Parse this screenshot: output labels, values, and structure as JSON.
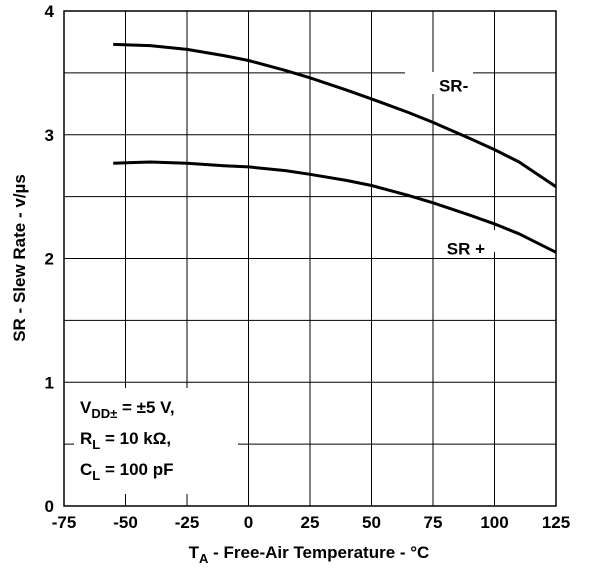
{
  "chart_data": {
    "type": "line",
    "xlabel_main": "T",
    "xlabel_sub": "A",
    "xlabel_rest": " - Free-Air Temperature - °C",
    "ylabel": "SR - Slew Rate - v/µs",
    "xlim": [
      -75,
      125
    ],
    "ylim": [
      0,
      4
    ],
    "x_ticks": [
      "-75",
      "-50",
      "-25",
      "0",
      "25",
      "50",
      "75",
      "100",
      "125"
    ],
    "y_ticks": [
      "0",
      "1",
      "2",
      "3",
      "4"
    ],
    "grid": true,
    "series": [
      {
        "name": "SR-",
        "x": [
          -55,
          -40,
          -25,
          -10,
          0,
          15,
          25,
          40,
          50,
          65,
          75,
          90,
          100,
          110,
          125
        ],
        "y": [
          3.73,
          3.72,
          3.69,
          3.64,
          3.6,
          3.52,
          3.46,
          3.36,
          3.29,
          3.18,
          3.1,
          2.97,
          2.88,
          2.78,
          2.58
        ]
      },
      {
        "name": "SR +",
        "x": [
          -55,
          -40,
          -25,
          -10,
          0,
          15,
          25,
          40,
          50,
          65,
          75,
          90,
          100,
          110,
          125
        ],
        "y": [
          2.77,
          2.78,
          2.77,
          2.75,
          2.74,
          2.71,
          2.68,
          2.63,
          2.59,
          2.51,
          2.45,
          2.35,
          2.28,
          2.2,
          2.05
        ]
      }
    ],
    "conditions": [
      {
        "main": "V",
        "sub": "DD±",
        "rest": " = ±5 V,"
      },
      {
        "main": "R",
        "sub": "L",
        "rest": " = 10 kΩ,"
      },
      {
        "main": "C",
        "sub": "L",
        "rest": " = 100 pF"
      }
    ]
  }
}
